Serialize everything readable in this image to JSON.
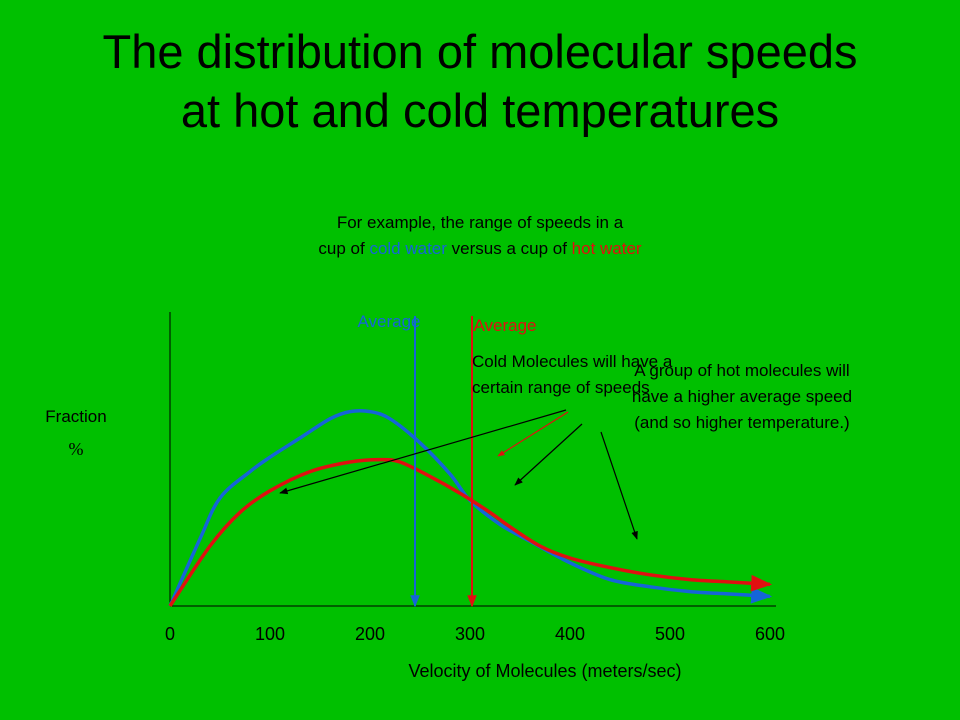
{
  "title": "The distribution of molecular speeds at hot and cold temperatures",
  "subtitle": {
    "line1": "For example, the range of speeds in a",
    "pre": "cup of ",
    "cold": "cold water",
    "mid": " versus a cup of ",
    "hot": "hot water"
  },
  "colors": {
    "background": "#00c000",
    "cold": "#1565d8",
    "hot": "#e01010",
    "text": "#000000"
  },
  "chart_data": {
    "type": "line",
    "xlabel": "Velocity of Molecules (meters/sec)",
    "ylabel": [
      "Fraction",
      "%"
    ],
    "xlim": [
      0,
      600
    ],
    "xticks": [
      0,
      100,
      200,
      300,
      400,
      500,
      600
    ],
    "ylim": [
      0,
      100
    ],
    "grid": false,
    "series": [
      {
        "key": "cold",
        "x": [
          0,
          30,
          50,
          80,
          100,
          130,
          160,
          180,
          200,
          220,
          250,
          280,
          300,
          330,
          360,
          400,
          440,
          480,
          520,
          560,
          600
        ],
        "y": [
          0,
          28,
          45,
          56,
          62,
          70,
          78,
          81,
          81,
          78,
          68,
          55,
          44,
          34,
          27,
          18,
          11,
          8,
          6,
          5,
          4
        ]
      },
      {
        "key": "hot",
        "x": [
          0,
          40,
          70,
          100,
          140,
          180,
          210,
          230,
          260,
          290,
          320,
          340,
          370,
          400,
          440,
          480,
          520,
          560,
          600
        ],
        "y": [
          0,
          25,
          39,
          48,
          56,
          60,
          61,
          60,
          54,
          47,
          39,
          33,
          25,
          20,
          16,
          13,
          11,
          10,
          9
        ]
      }
    ],
    "averages": [
      {
        "series": "cold",
        "x": 245,
        "label": "Average"
      },
      {
        "series": "hot",
        "x": 302,
        "label": "Average"
      }
    ],
    "annotations": [
      {
        "key": "cold",
        "lines": [
          "Cold Molecules will have a",
          "certain range of speeds"
        ]
      },
      {
        "key": "hot",
        "lines": [
          "A group of hot molecules will",
          "have a higher average speed",
          "(and so higher temperature.)"
        ]
      }
    ]
  }
}
